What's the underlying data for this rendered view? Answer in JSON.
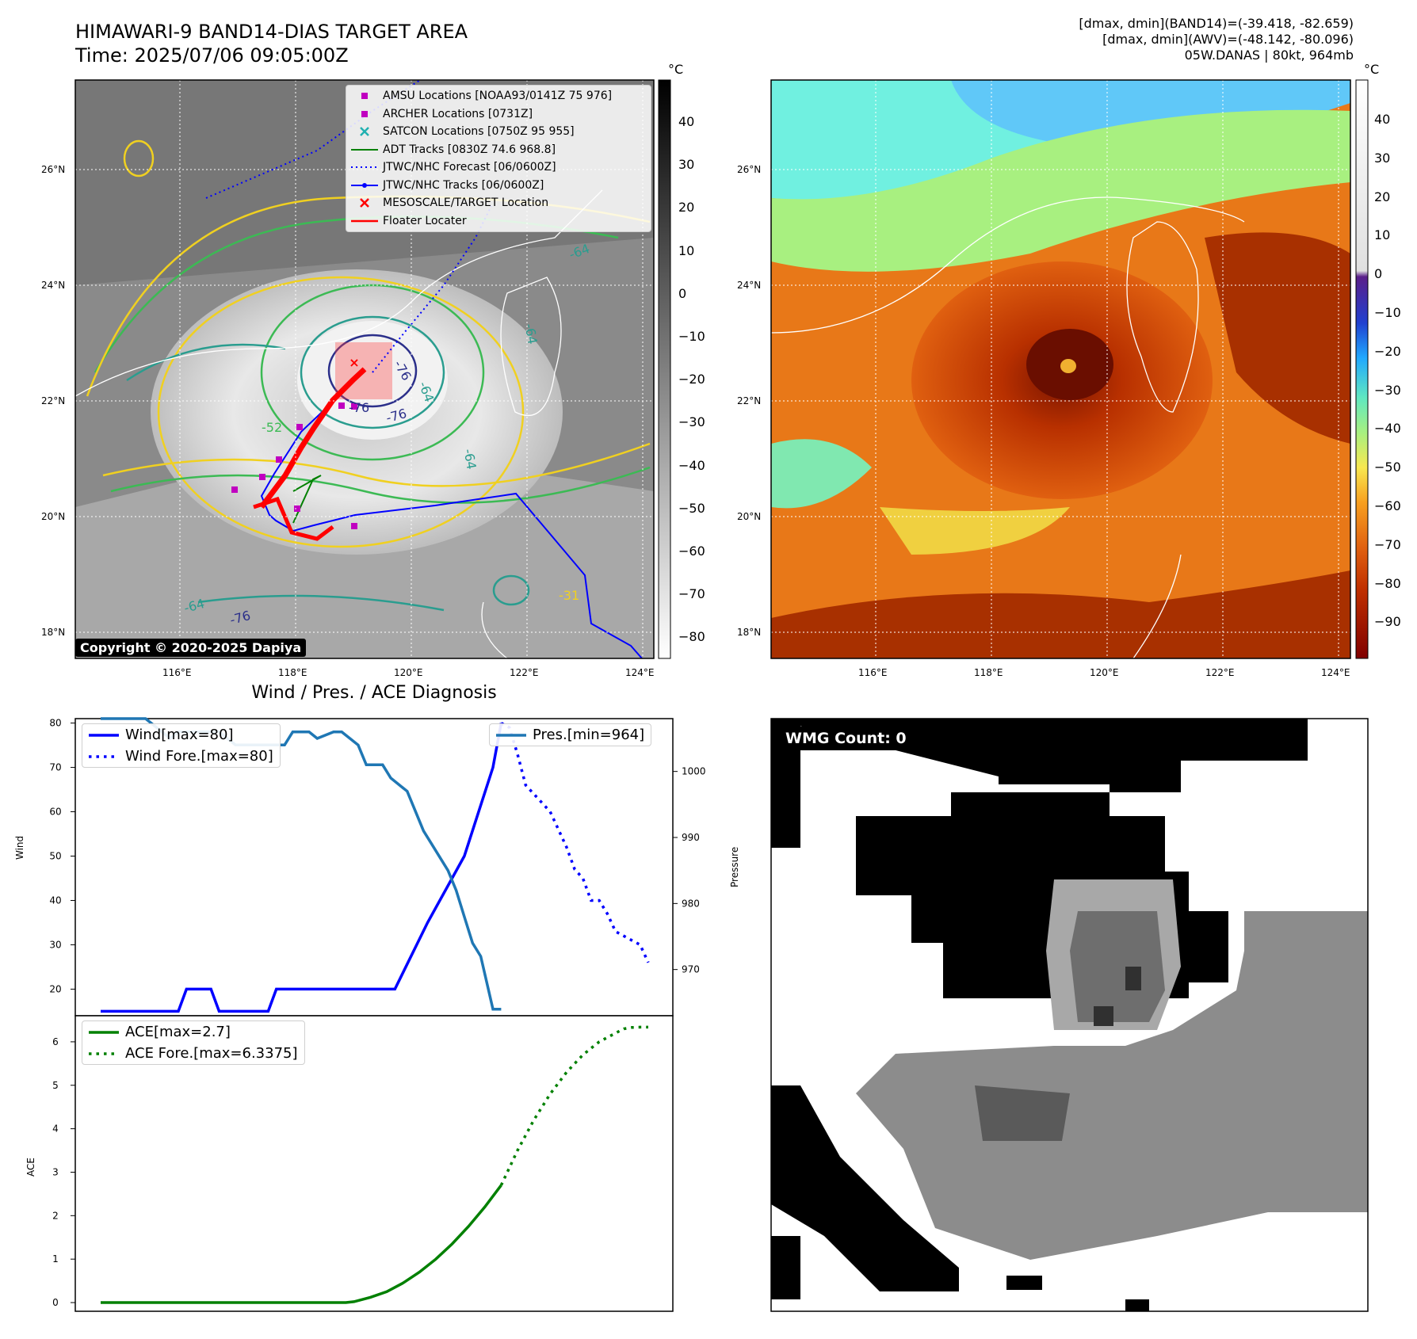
{
  "header": {
    "title_line1": "HIMAWARI-9 BAND14-DIAS TARGET AREA",
    "title_line2": "Time: 2025/07/06 09:05:00Z",
    "info_line1": "[dmax, dmin](BAND14)=(-39.418, -82.659)",
    "info_line2": "[dmax, dmin](AWV)=(-48.142, -80.096)",
    "info_line3": "05W.DANAS | 80kt, 964mb"
  },
  "map_left": {
    "lat_labels": [
      "26°N",
      "24°N",
      "22°N",
      "20°N",
      "18°N"
    ],
    "lon_labels": [
      "116°E",
      "118°E",
      "120°E",
      "122°E",
      "124°E"
    ],
    "contour_labels": [
      "-64",
      "-76",
      "-64",
      "-76",
      "-76",
      "-64",
      "-52",
      "-64",
      "-31",
      "-64",
      "-76"
    ],
    "copyright": "Copyright © 2020-2025 Dapiya",
    "legend": [
      {
        "label": "AMSU Locations [NOAA93/0141Z 75 976]",
        "marker": "square",
        "color": "#c000c0"
      },
      {
        "label": "ARCHER Locations [0731Z]",
        "marker": "square",
        "color": "#c000c0"
      },
      {
        "label": "SATCON Locations [0750Z 95 955]",
        "marker": "x",
        "color": "#20b0b0"
      },
      {
        "label": "ADT Tracks [0830Z 74.6 968.8]",
        "marker": "line",
        "color": "#008000"
      },
      {
        "label": "JTWC/NHC Forecast [06/0600Z]",
        "marker": "dotted",
        "color": "#0000ff"
      },
      {
        "label": "JTWC/NHC Tracks [06/0600Z]",
        "marker": "line-dot",
        "color": "#0000ff"
      },
      {
        "label": "MESOSCALE/TARGET Location",
        "marker": "x",
        "color": "#ff0000"
      },
      {
        "label": "Floater Locater",
        "marker": "line",
        "color": "#ff0000"
      }
    ],
    "colorbar": {
      "unit": "°C",
      "ticks": [
        "40",
        "30",
        "20",
        "10",
        "0",
        "−10",
        "−20",
        "−30",
        "−40",
        "−50",
        "−60",
        "−70",
        "−80"
      ]
    }
  },
  "map_right": {
    "lat_labels": [
      "26°N",
      "24°N",
      "22°N",
      "20°N",
      "18°N"
    ],
    "lon_labels": [
      "116°E",
      "118°E",
      "120°E",
      "122°E",
      "124°E"
    ],
    "colorbar": {
      "unit": "°C",
      "ticks": [
        "40",
        "30",
        "20",
        "10",
        "0",
        "−10",
        "−20",
        "−30",
        "−40",
        "−50",
        "−60",
        "−70",
        "−80",
        "−90"
      ]
    }
  },
  "chart_data": [
    {
      "type": "line",
      "title": "Wind / Pres. / ACE Diagnosis",
      "ylabel": "Wind",
      "ylabel_right": "Pressure",
      "ylim": [
        14,
        81
      ],
      "ylim_right": [
        963,
        1008
      ],
      "y_ticks": [
        20,
        30,
        40,
        50,
        60,
        70,
        80
      ],
      "y_ticks_right": [
        970,
        980,
        990,
        1000
      ],
      "series": [
        {
          "name": "Wind[max=80]",
          "axis": "left",
          "style": "solid",
          "color": "#0000ff",
          "x": [
            0,
            19,
            21,
            27,
            29,
            41,
            43,
            72,
            80,
            89,
            96,
            98
          ],
          "values": [
            15,
            15,
            20,
            20,
            15,
            15,
            20,
            20,
            35,
            50,
            70,
            80
          ]
        },
        {
          "name": "Wind Fore.[max=80]",
          "axis": "left",
          "style": "dotted",
          "color": "#0000ff",
          "x": [
            98,
            100,
            102,
            104,
            106,
            108,
            110,
            112,
            114,
            116,
            118,
            120,
            122,
            124,
            126,
            128,
            130,
            132,
            134
          ],
          "values": [
            80,
            79,
            73,
            66,
            64,
            62,
            60,
            56,
            52,
            47,
            45,
            40,
            40,
            37,
            33,
            32,
            31,
            30,
            26
          ]
        },
        {
          "name": "Pres.[min=964]",
          "axis": "right",
          "style": "solid",
          "color": "#1f77b4",
          "x": [
            0,
            9,
            11,
            17,
            19,
            27,
            29,
            33,
            35,
            45,
            47,
            51,
            53,
            57,
            59,
            63,
            65,
            69,
            71,
            75,
            77,
            79,
            81,
            85,
            87,
            89,
            91,
            93,
            96,
            98
          ],
          "values": [
            1008,
            1008,
            1008,
            1005,
            1006,
            1006,
            1006,
            1004,
            1004,
            1004,
            1006,
            1006,
            1005,
            1006,
            1006,
            1004,
            1001,
            1001,
            999,
            997,
            994,
            991,
            989,
            985,
            982,
            978,
            974,
            972,
            964,
            964
          ]
        }
      ]
    },
    {
      "type": "line",
      "ylabel": "ACE",
      "ylim": [
        -0.2,
        6.6
      ],
      "y_ticks": [
        0,
        1,
        2,
        3,
        4,
        5,
        6
      ],
      "series": [
        {
          "name": "ACE[max=2.7]",
          "style": "solid",
          "color": "#008000",
          "x": [
            0,
            60,
            62,
            66,
            70,
            74,
            78,
            82,
            86,
            90,
            94,
            98
          ],
          "values": [
            0,
            0,
            0.02,
            0.12,
            0.25,
            0.45,
            0.7,
            1.0,
            1.35,
            1.75,
            2.2,
            2.7
          ]
        },
        {
          "name": "ACE Fore.[max=6.3375]",
          "style": "dotted",
          "color": "#008000",
          "x": [
            98,
            100,
            102,
            104,
            106,
            108,
            110,
            112,
            114,
            116,
            118,
            120,
            122,
            124,
            126,
            128,
            130,
            132,
            134
          ],
          "values": [
            2.7,
            3.1,
            3.5,
            3.85,
            4.2,
            4.5,
            4.8,
            5.05,
            5.3,
            5.5,
            5.7,
            5.85,
            6.0,
            6.1,
            6.2,
            6.3,
            6.33,
            6.3375,
            6.3375
          ]
        }
      ]
    }
  ],
  "wmg_panel": {
    "label": "WMG Count: 0"
  }
}
